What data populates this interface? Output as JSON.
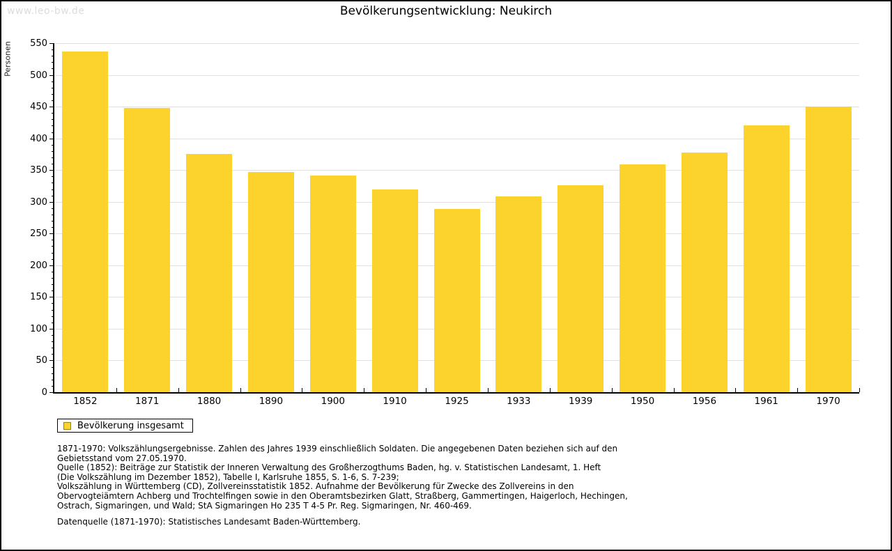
{
  "watermark": "www.leo-bw.de",
  "header": {
    "title": "Bevölkerungsentwicklung: Neukirch"
  },
  "legend": {
    "label": "Bevölkerung insgesamt"
  },
  "footnote_lines": "1871-1970: Volkszählungsergebnisse. Zahlen des Jahres 1939 einschließlich Soldaten. Die angegebenen Daten beziehen sich auf den\nGebietsstand vom 27.05.1970.\nQuelle (1852): Beiträge zur Statistik der Inneren Verwaltung des Großherzogthums Baden, hg. v. Statistischen Landesamt, 1. Heft\n(Die Volkszählung im Dezember 1852), Tabelle I, Karlsruhe 1855, S. 1-6, S. 7-239;\nVolkszählung in Württemberg (CD), Zollvereinsstatistik 1852. Aufnahme der Bevölkerung für Zwecke des Zollvereins in den\nObervogteiämtern Achberg und Trochtelfingen sowie in den Oberamtsbezirken Glatt, Straßberg, Gammertingen, Haigerloch, Hechingen,\nOstrach, Sigmaringen, und Wald; StA Sigmaringen Ho 235 T 4-5 Pr. Reg. Sigmaringen, Nr. 460-469.",
  "datasource": "Datenquelle (1871-1970): Statistisches Landesamt Baden-Württemberg.",
  "colors": {
    "bar": "#FCD32D",
    "legend_swatch_border": "#9C8100",
    "grid": "#E0E0E0",
    "axis": "#000000",
    "watermark": "#DCDCDC"
  },
  "chart_data": {
    "type": "bar",
    "title": "Bevölkerungsentwicklung: Neukirch",
    "xlabel": "",
    "ylabel": "Personen",
    "categories": [
      "1852",
      "1871",
      "1880",
      "1890",
      "1900",
      "1910",
      "1925",
      "1933",
      "1939",
      "1950",
      "1956",
      "1961",
      "1970"
    ],
    "values": [
      537,
      448,
      376,
      347,
      341,
      320,
      289,
      309,
      326,
      359,
      378,
      421,
      450
    ],
    "ylim": [
      0,
      550
    ],
    "ytick_step": 50,
    "yminor_step": 10,
    "grid": true,
    "legend": [
      "Bevölkerung insgesamt"
    ],
    "legend_position": "bottom-left",
    "bar_color": "#FCD32D"
  }
}
